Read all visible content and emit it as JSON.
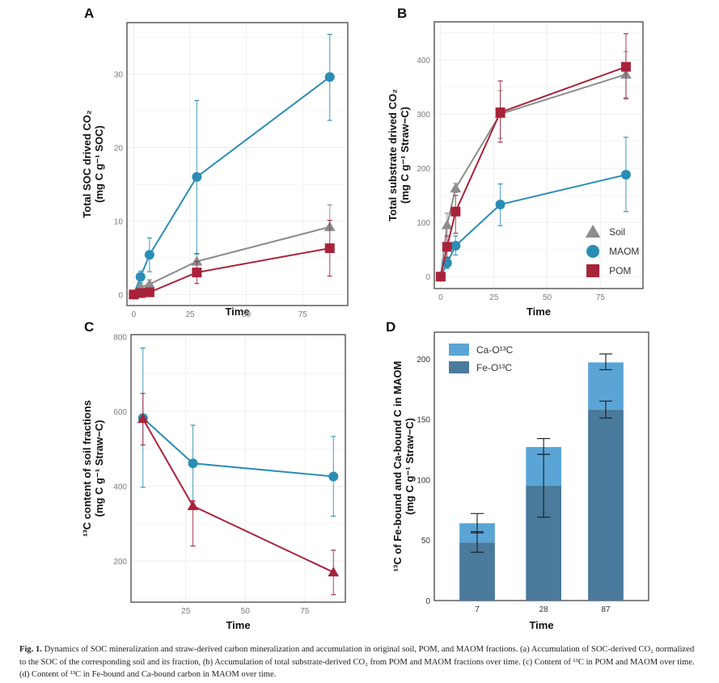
{
  "figure": {
    "caption_label": "Fig. 1.",
    "caption_text": "Dynamics of SOC mineralization and straw-derived carbon mineralization and accumulation in original soil, POM, and MAOM fractions. (a) Accumulation of SOC-derived CO₂ normalized to the SOC of the corresponding soil and its fraction, (b) Accumulation of total substrate-derived CO₂ from POM and MAOM fractions over time. (c) Content of ¹³C in POM and MAOM over time. (d) Content of ¹³C in Fe-bound and Ca-bound carbon in MAOM over time.",
    "colors": {
      "soil": "#8c8c8c",
      "maom": "#2a8db5",
      "pom": "#a8233a",
      "ca": "#5aa5d6",
      "fe": "#4a7a9c"
    }
  },
  "chart_data": [
    {
      "panel": "A",
      "type": "line",
      "title": "",
      "xlabel": "Time",
      "ylabel_line1": "Total SOC drived CO₂",
      "ylabel_line2": "(mg C g⁻¹ SOC)",
      "xlim": [
        -3,
        95
      ],
      "ylim": [
        -1.5,
        37
      ],
      "xticks": [
        0,
        25,
        50,
        75
      ],
      "yticks": [
        0,
        10,
        20,
        30
      ],
      "grid": true,
      "x": [
        0,
        3,
        7,
        28,
        87
      ],
      "series": [
        {
          "name": "Soil",
          "marker": "triangle",
          "values": [
            0,
            1.0,
            1.4,
            4.5,
            9.2
          ],
          "err_low": [
            0,
            0.6,
            0.9,
            4.3,
            9.2
          ],
          "err_high": [
            0,
            1.4,
            2.0,
            5.6,
            12.2
          ]
        },
        {
          "name": "MAOM",
          "marker": "circle",
          "values": [
            0,
            2.4,
            5.4,
            16.0,
            29.6
          ],
          "err_low": [
            0,
            1.6,
            3.1,
            5.5,
            23.7
          ],
          "err_high": [
            0,
            3.2,
            7.7,
            26.4,
            35.4
          ]
        },
        {
          "name": "POM",
          "marker": "square",
          "values": [
            0,
            0.2,
            0.3,
            3.0,
            6.3
          ],
          "err_low": [
            0,
            0,
            0,
            1.5,
            2.5
          ],
          "err_high": [
            0,
            0.4,
            0.6,
            4.5,
            10.1
          ]
        }
      ]
    },
    {
      "panel": "B",
      "type": "line",
      "title": "",
      "xlabel": "Time",
      "ylabel_line1": "Total substrate drived CO₂",
      "ylabel_line2": "(mg C g⁻¹ Straw−C)",
      "xlim": [
        -3,
        95
      ],
      "ylim": [
        -22,
        470
      ],
      "xticks": [
        0,
        25,
        50,
        75
      ],
      "yticks": [
        0,
        100,
        200,
        300,
        400
      ],
      "grid": true,
      "legend": {
        "position": "bottom-right",
        "entries": [
          "Soil",
          "MAOM",
          "POM"
        ]
      },
      "x": [
        0,
        3,
        7,
        28,
        87
      ],
      "series": [
        {
          "name": "Soil",
          "marker": "triangle",
          "values": [
            0,
            95,
            163,
            300,
            373
          ],
          "err_low": [
            0,
            75,
            155,
            255,
            330
          ],
          "err_high": [
            0,
            117,
            172,
            343,
            415
          ]
        },
        {
          "name": "MAOM",
          "marker": "circle",
          "values": [
            0,
            25,
            57,
            133,
            188
          ],
          "err_low": [
            0,
            15,
            40,
            94,
            120
          ],
          "err_high": [
            0,
            36,
            75,
            171,
            257
          ]
        },
        {
          "name": "POM",
          "marker": "square",
          "values": [
            0,
            55,
            120,
            303,
            387
          ],
          "err_low": [
            0,
            35,
            80,
            248,
            328
          ],
          "err_high": [
            0,
            75,
            150,
            361,
            448
          ]
        }
      ]
    },
    {
      "panel": "C",
      "type": "line",
      "title": "",
      "xlabel": "Time",
      "ylabel_line1": "¹³C content of  soil fractions",
      "ylabel_line2": "(mg C g⁻¹ Straw−C)",
      "xlim": [
        2,
        92
      ],
      "ylim": [
        90,
        805
      ],
      "xticks": [
        25,
        50,
        75
      ],
      "yticks": [
        200,
        400,
        600,
        800
      ],
      "grid": true,
      "x": [
        7,
        28,
        87
      ],
      "series": [
        {
          "name": "MAOM",
          "marker": "circle",
          "color_key": "maom",
          "values": [
            582,
            461,
            426
          ],
          "err_low": [
            397,
            360,
            320
          ],
          "err_high": [
            769,
            563,
            533
          ]
        },
        {
          "name": "POM",
          "marker": "triangle",
          "color_key": "pom",
          "values": [
            580,
            347,
            170
          ],
          "err_low": [
            510,
            240,
            110
          ],
          "err_high": [
            648,
            361,
            229
          ]
        }
      ]
    },
    {
      "panel": "D",
      "type": "bar",
      "stacked": true,
      "title": "",
      "xlabel": "Time",
      "ylabel_line1": "¹³C of Fe-bound and Ca-bound C in MAOM",
      "ylabel_line2": "(mg C g⁻¹ Straw−C)",
      "ylim": [
        0,
        222
      ],
      "yticks": [
        0,
        50,
        100,
        150,
        200
      ],
      "grid": false,
      "legend": {
        "position": "top-left",
        "entries": [
          "Ca-O¹³C",
          "Fe-O¹³C"
        ]
      },
      "categories": [
        "7",
        "28",
        "87"
      ],
      "series": [
        {
          "name": "Fe-O¹³C",
          "color_key": "fe",
          "values": [
            48,
            95,
            158
          ],
          "err_low": [
            40,
            69,
            151
          ],
          "err_high": [
            57,
            121,
            165
          ]
        },
        {
          "name": "Ca-O¹³C",
          "color_key": "ca",
          "values": [
            16,
            32,
            39
          ],
          "total": [
            64,
            127,
            197
          ],
          "err_low": [
            56,
            121,
            191
          ],
          "err_high": [
            72,
            134,
            204
          ]
        }
      ]
    }
  ]
}
